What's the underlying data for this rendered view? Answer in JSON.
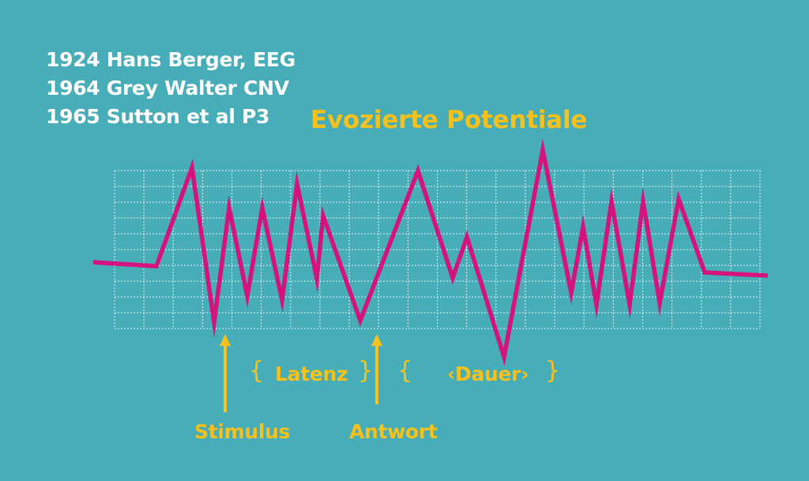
{
  "history": [
    "1924 Hans Berger, EEG",
    "1964 Grey Walter CNV",
    "1965 Sutton et al P3"
  ],
  "title": "Evozierte Potentiale",
  "labels": {
    "latency": "Latenz",
    "duration": "‹Dauer›",
    "stimulus": "Stimulus",
    "response": "Antwort"
  },
  "braces": {
    "open": "{",
    "close": "}"
  },
  "colors": {
    "background": "#47aeb9",
    "waveform": "#d6127d",
    "accent": "#f6c11a",
    "text": "#ffffff",
    "grid": "#ffffff"
  }
}
